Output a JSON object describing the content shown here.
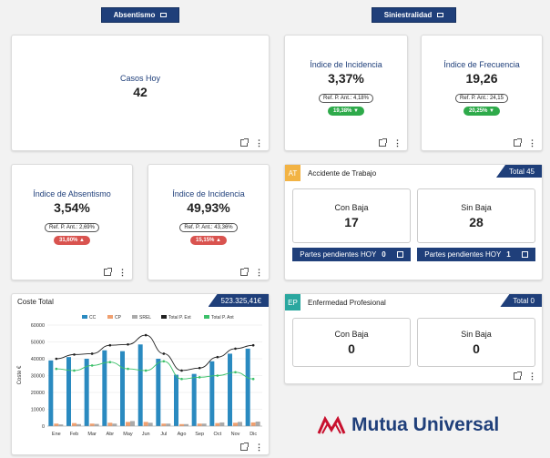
{
  "headers": {
    "absentismo": "Absentismo",
    "siniestralidad": "Siniestralidad"
  },
  "casos_hoy": {
    "label": "Casos Hoy",
    "value": "42"
  },
  "incidencia_sin": {
    "label": "Índice de Incidencia",
    "value": "3,37%",
    "ref": "Ref. P. Ant.: 4,18%",
    "delta": "19,38% ▼"
  },
  "frecuencia": {
    "label": "Índice de Frecuencia",
    "value": "19,26",
    "ref": "Ref. P. Ant.: 24,15",
    "delta": "20,25% ▼"
  },
  "absentismo": {
    "label": "Índice de Absentismo",
    "value": "3,54%",
    "ref": "Ref. P. Ant.: 2,69%",
    "delta": "31,60% ▲"
  },
  "incidencia_abs": {
    "label": "Índice de Incidencia",
    "value": "49,93%",
    "ref": "Ref. P. Ant.: 43,36%",
    "delta": "15,15% ▲"
  },
  "accidente": {
    "tag": "AT",
    "title": "Accidente de Trabajo",
    "total": "Total 45",
    "con_baja_label": "Con Baja",
    "con_baja_value": "17",
    "sin_baja_label": "Sin Baja",
    "sin_baja_value": "28",
    "pend_con_label": "Partes pendientes HOY",
    "pend_con_value": "0",
    "pend_sin_label": "Partes pendientes HOY",
    "pend_sin_value": "1"
  },
  "enfermedad": {
    "tag": "EP",
    "title": "Enfermedad Profesional",
    "total": "Total 0",
    "con_baja_label": "Con Baja",
    "con_baja_value": "0",
    "sin_baja_label": "Sin Baja",
    "sin_baja_value": "0"
  },
  "coste": {
    "title": "Coste Total",
    "total": "523.325,41€"
  },
  "logo": {
    "text": "Mutua Universal"
  },
  "chart_data": {
    "type": "bar",
    "title": "Coste Total",
    "ylabel": "Coste €",
    "ylim": [
      0,
      60000
    ],
    "yticks": [
      "0",
      "10000",
      "20000",
      "30000",
      "40000",
      "50000",
      "60000"
    ],
    "categories": [
      "Ene",
      "Feb",
      "Mar",
      "Abr",
      "May",
      "Jun",
      "Jul",
      "Ago",
      "Sep",
      "Oct",
      "Nov",
      "Dic"
    ],
    "legend": [
      "CC",
      "CP",
      "SREL",
      "Total P. Ext",
      "Total P. Ant"
    ],
    "colors": {
      "CC": "#2a8ac0",
      "CP": "#f0a070",
      "SREL": "#aaaaaa",
      "Total P. Ext": "#222222",
      "Total P. Ant": "#3cc06a"
    },
    "series": [
      {
        "name": "CC",
        "values": [
          39000,
          41000,
          40000,
          45000,
          44500,
          48500,
          40000,
          30500,
          31000,
          38500,
          43000,
          46000
        ]
      },
      {
        "name": "CP",
        "values": [
          1500,
          1800,
          1500,
          2000,
          2500,
          2500,
          1500,
          1200,
          1500,
          1800,
          2000,
          2200
        ]
      },
      {
        "name": "SREL",
        "values": [
          1000,
          1200,
          1300,
          1500,
          3000,
          2000,
          1500,
          1200,
          1500,
          2200,
          2500,
          2700
        ]
      },
      {
        "name": "Total P. Ext",
        "values": [
          40000,
          42500,
          43000,
          48000,
          48500,
          54000,
          43000,
          33000,
          34500,
          41000,
          46000,
          48000
        ]
      },
      {
        "name": "Total P. Ant",
        "values": [
          34000,
          33000,
          36000,
          38000,
          34000,
          33000,
          38500,
          28000,
          29000,
          30000,
          32000,
          28000
        ]
      }
    ]
  }
}
